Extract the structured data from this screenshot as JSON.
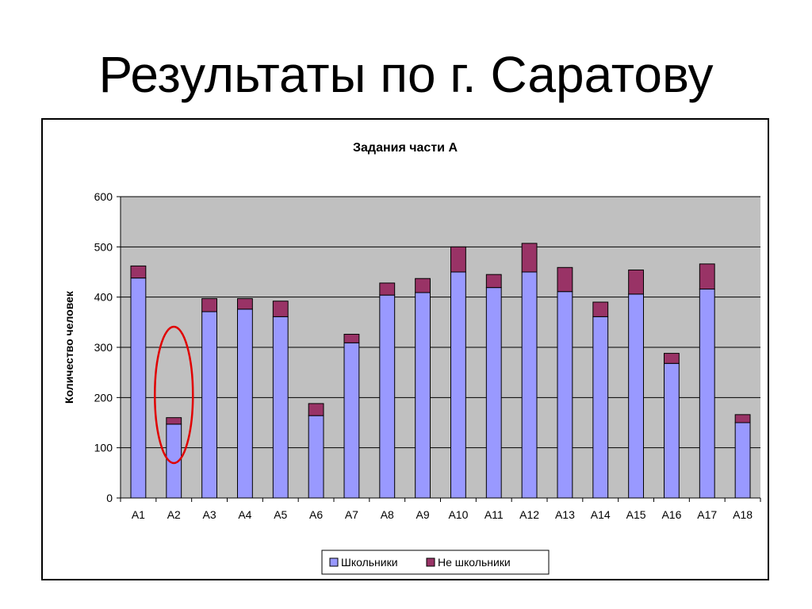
{
  "slide": {
    "title": "Результаты по г. Саратову"
  },
  "chart_data": {
    "type": "bar",
    "stacked": true,
    "title": "Задания части А",
    "xlabel": "",
    "ylabel": "Количество человек",
    "ylim": [
      0,
      600
    ],
    "yticks": [
      0,
      100,
      200,
      300,
      400,
      500,
      600
    ],
    "grid": true,
    "legend_position": "bottom",
    "categories": [
      "A1",
      "A2",
      "A3",
      "A4",
      "A5",
      "A6",
      "A7",
      "A8",
      "A9",
      "A10",
      "A11",
      "A12",
      "A13",
      "A14",
      "A15",
      "A16",
      "A17",
      "A18"
    ],
    "series": [
      {
        "name": "Школьники",
        "color": "#9999FF",
        "values": [
          438,
          147,
          371,
          376,
          361,
          164,
          309,
          404,
          409,
          450,
          419,
          450,
          411,
          361,
          406,
          268,
          416,
          150
        ]
      },
      {
        "name": "Не школьники",
        "color": "#993366",
        "values": [
          24,
          13,
          26,
          21,
          31,
          24,
          17,
          24,
          28,
          50,
          26,
          57,
          48,
          29,
          48,
          20,
          50,
          16
        ]
      }
    ],
    "highlight": {
      "category": "A2",
      "shape": "ellipse",
      "color": "#E00000"
    },
    "plot_background": "#C0C0C0"
  }
}
